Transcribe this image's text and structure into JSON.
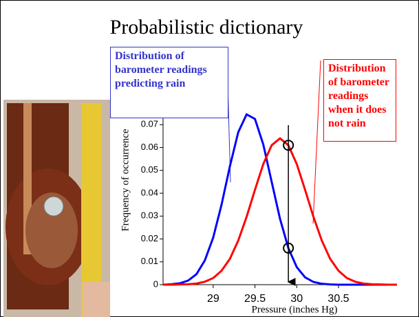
{
  "chart_data": {
    "type": "line",
    "title": "Probabilistic dictionary",
    "x_label": "Pressure (inches Hg)",
    "y_label": "Frequency of occurrence",
    "x": [
      28.4,
      28.5,
      28.6,
      28.7,
      28.8,
      28.9,
      29.0,
      29.1,
      29.2,
      29.3,
      29.4,
      29.5,
      29.6,
      29.7,
      29.8,
      29.9,
      30.0,
      30.1,
      30.2,
      30.3,
      30.4,
      30.5,
      30.6,
      30.7,
      30.8,
      30.9,
      31.0,
      31.1,
      31.2
    ],
    "series": [
      {
        "color": "#0000ff",
        "values": [
          0,
          0.0002,
          0.0006,
          0.0018,
          0.0046,
          0.0106,
          0.0206,
          0.035,
          0.0518,
          0.0667,
          0.0745,
          0.0725,
          0.0613,
          0.045,
          0.0288,
          0.016,
          0.0077,
          0.0032,
          0.0012,
          0.0004,
          0.0001,
          0,
          0,
          0,
          0,
          0,
          0,
          0,
          0
        ]
      },
      {
        "color": "#ff0000",
        "values": [
          0,
          0,
          0.0001,
          0.0002,
          0.0005,
          0.0013,
          0.0029,
          0.0061,
          0.0113,
          0.0193,
          0.0297,
          0.0415,
          0.0528,
          0.061,
          0.064,
          0.061,
          0.0528,
          0.0415,
          0.0297,
          0.0193,
          0.0113,
          0.0061,
          0.0029,
          0.0013,
          0.0005,
          0.0002,
          0.0001,
          0,
          0
        ]
      }
    ],
    "xlim": [
      28.4,
      31.2
    ],
    "ylim": [
      0,
      0.074
    ],
    "xticks": [
      29,
      29.5,
      30,
      30.5
    ],
    "yticks": [
      0,
      0.01,
      0.02,
      0.03,
      0.04,
      0.05,
      0.06,
      0.07
    ],
    "annotations": [
      {
        "text": "Distribution of barometer readings predicting rain"
      },
      {
        "text": "Distribution of barometer readings when it does not rain"
      }
    ]
  }
}
